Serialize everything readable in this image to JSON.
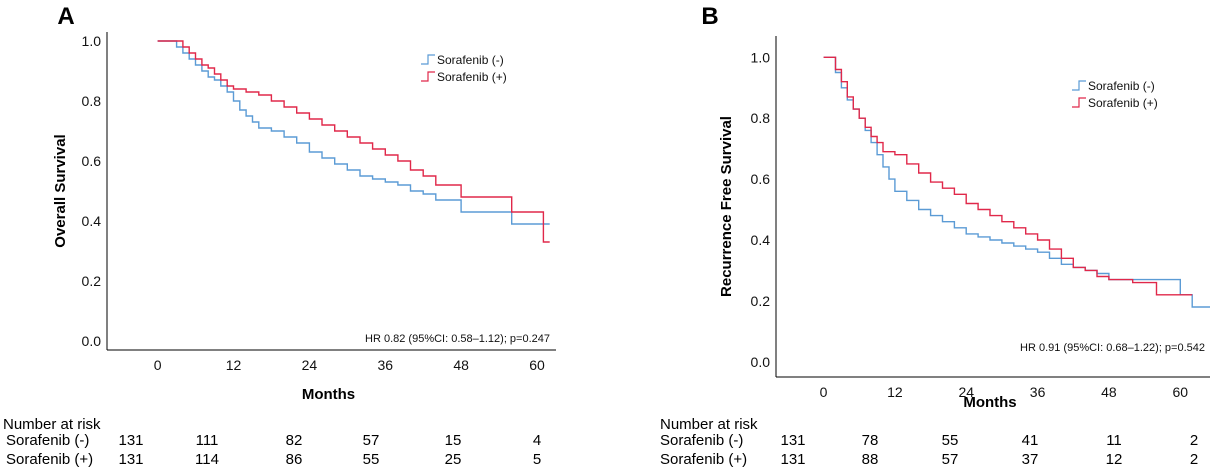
{
  "colors": {
    "sorafenib_neg": "#5b9bd5",
    "sorafenib_pos": "#e0284a"
  },
  "chart_data": [
    {
      "panel_label": "A",
      "type": "line",
      "step": true,
      "ylabel": "Overall Survival",
      "xlabel": "Months",
      "x_ticks": [
        "0",
        "12",
        "24",
        "36",
        "48",
        "60"
      ],
      "y_ticks": [
        "0.0",
        "0.2",
        "0.4",
        "0.6",
        "0.8",
        "1.0"
      ],
      "xlim": [
        -8,
        63
      ],
      "ylim": [
        -0.03,
        1.03
      ],
      "legend": [
        "Sorafenib (-)",
        "Sorafenib (+)"
      ],
      "legend_position": "top-right",
      "annotation": "HR 0.82 (95%CI: 0.58–1.12); p=0.247",
      "series": [
        {
          "name": "Sorafenib (-)",
          "x": [
            0,
            3,
            4,
            5,
            6,
            7,
            8,
            9,
            10,
            11,
            12,
            13,
            14,
            15,
            16,
            18,
            20,
            22,
            24,
            26,
            28,
            30,
            32,
            34,
            36,
            38,
            40,
            42,
            44,
            48,
            52,
            56,
            62
          ],
          "y": [
            1.0,
            0.98,
            0.96,
            0.94,
            0.92,
            0.9,
            0.88,
            0.87,
            0.85,
            0.83,
            0.8,
            0.77,
            0.75,
            0.73,
            0.71,
            0.7,
            0.68,
            0.66,
            0.63,
            0.61,
            0.59,
            0.57,
            0.55,
            0.54,
            0.53,
            0.52,
            0.5,
            0.49,
            0.47,
            0.43,
            0.43,
            0.39,
            0.39
          ]
        },
        {
          "name": "Sorafenib (+)",
          "x": [
            0,
            4,
            5,
            6,
            7,
            8,
            9,
            10,
            11,
            12,
            14,
            16,
            18,
            20,
            22,
            24,
            26,
            28,
            30,
            32,
            34,
            36,
            38,
            40,
            42,
            44,
            48,
            52,
            56,
            61,
            62
          ],
          "y": [
            1.0,
            0.98,
            0.96,
            0.94,
            0.92,
            0.91,
            0.89,
            0.87,
            0.85,
            0.84,
            0.83,
            0.82,
            0.8,
            0.78,
            0.76,
            0.74,
            0.72,
            0.7,
            0.68,
            0.66,
            0.64,
            0.62,
            0.6,
            0.57,
            0.55,
            0.52,
            0.48,
            0.48,
            0.43,
            0.33,
            0.33
          ]
        }
      ],
      "risk_table": {
        "title": "Number at risk",
        "timepoints": [
          0,
          12,
          24,
          36,
          48,
          60
        ],
        "rows": [
          {
            "label": "Sorafenib (-)",
            "values": [
              "131",
              "111",
              "82",
              "57",
              "15",
              "4"
            ]
          },
          {
            "label": "Sorafenib (+)",
            "values": [
              "131",
              "114",
              "86",
              "55",
              "25",
              "5"
            ]
          }
        ]
      }
    },
    {
      "panel_label": "B",
      "type": "line",
      "step": true,
      "ylabel": "Recurrence Free Survival",
      "xlabel": "Months",
      "x_ticks": [
        "0",
        "12",
        "24",
        "36",
        "48",
        "60"
      ],
      "y_ticks": [
        "0.0",
        "0.2",
        "0.4",
        "0.6",
        "0.8",
        "1.0"
      ],
      "xlim": [
        -8,
        65
      ],
      "ylim": [
        -0.05,
        1.07
      ],
      "legend": [
        "Sorafenib (-)",
        "Sorafenib (+)"
      ],
      "legend_position": "top-right",
      "annotation": "HR 0.91 (95%CI: 0.68–1.22); p=0.542",
      "series": [
        {
          "name": "Sorafenib (-)",
          "x": [
            0,
            2,
            3,
            4,
            5,
            6,
            7,
            8,
            9,
            10,
            11,
            12,
            14,
            16,
            18,
            20,
            22,
            24,
            26,
            28,
            30,
            32,
            34,
            36,
            38,
            40,
            42,
            44,
            46,
            48,
            52,
            56,
            60,
            62,
            65
          ],
          "y": [
            1.0,
            0.95,
            0.9,
            0.86,
            0.83,
            0.8,
            0.76,
            0.72,
            0.68,
            0.64,
            0.6,
            0.56,
            0.53,
            0.5,
            0.48,
            0.46,
            0.44,
            0.42,
            0.41,
            0.4,
            0.39,
            0.38,
            0.37,
            0.36,
            0.34,
            0.32,
            0.31,
            0.3,
            0.29,
            0.27,
            0.27,
            0.27,
            0.22,
            0.18,
            0.18
          ]
        },
        {
          "name": "Sorafenib (+)",
          "x": [
            0,
            2,
            3,
            4,
            5,
            6,
            7,
            8,
            9,
            10,
            12,
            14,
            16,
            18,
            20,
            22,
            24,
            26,
            28,
            30,
            32,
            34,
            36,
            38,
            40,
            42,
            44,
            46,
            48,
            52,
            56,
            60,
            62
          ],
          "y": [
            1.0,
            0.96,
            0.92,
            0.87,
            0.83,
            0.8,
            0.77,
            0.74,
            0.72,
            0.69,
            0.68,
            0.65,
            0.62,
            0.59,
            0.57,
            0.55,
            0.52,
            0.5,
            0.48,
            0.46,
            0.44,
            0.42,
            0.4,
            0.37,
            0.34,
            0.31,
            0.3,
            0.28,
            0.27,
            0.26,
            0.22,
            0.22,
            0.22
          ]
        }
      ],
      "risk_table": {
        "title": "Number at risk",
        "timepoints": [
          0,
          12,
          24,
          36,
          48,
          60
        ],
        "rows": [
          {
            "label": "Sorafenib (-)",
            "values": [
              "131",
              "78",
              "55",
              "41",
              "11",
              "2"
            ]
          },
          {
            "label": "Sorafenib (+)",
            "values": [
              "131",
              "88",
              "57",
              "37",
              "12",
              "2"
            ]
          }
        ]
      }
    }
  ]
}
